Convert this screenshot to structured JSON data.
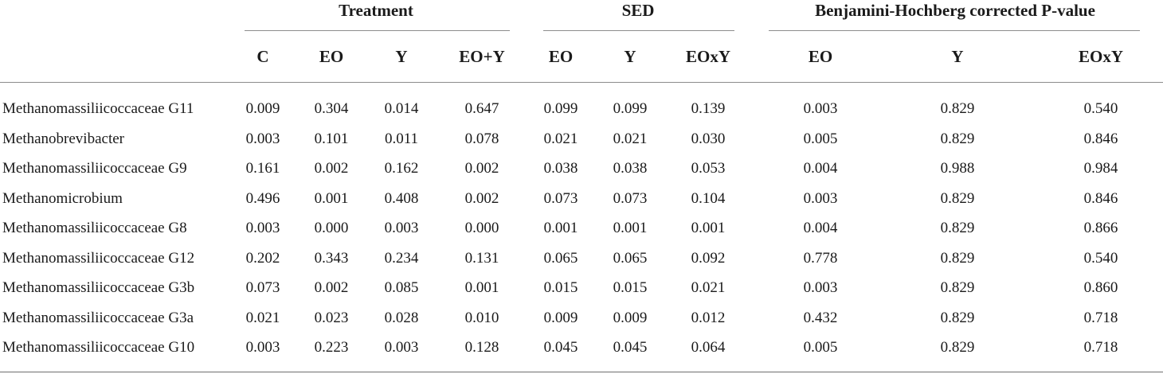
{
  "groups": {
    "treatment": "Treatment",
    "sed": "SED",
    "bh": "Benjamini-Hochberg corrected P-value"
  },
  "columns": [
    "C",
    "EO",
    "Y",
    "EO+Y",
    "EO",
    "Y",
    "EOxY",
    "EO",
    "Y",
    "EOxY"
  ],
  "rows": [
    {
      "label": "Methanomassiliicoccaceae G11",
      "values": [
        "0.009",
        "0.304",
        "0.014",
        "0.647",
        "0.099",
        "0.099",
        "0.139",
        "0.003",
        "0.829",
        "0.540"
      ]
    },
    {
      "label": "Methanobrevibacter",
      "values": [
        "0.003",
        "0.101",
        "0.011",
        "0.078",
        "0.021",
        "0.021",
        "0.030",
        "0.005",
        "0.829",
        "0.846"
      ]
    },
    {
      "label": "Methanomassiliicoccaceae G9",
      "values": [
        "0.161",
        "0.002",
        "0.162",
        "0.002",
        "0.038",
        "0.038",
        "0.053",
        "0.004",
        "0.988",
        "0.984"
      ]
    },
    {
      "label": "Methanomicrobium",
      "values": [
        "0.496",
        "0.001",
        "0.408",
        "0.002",
        "0.073",
        "0.073",
        "0.104",
        "0.003",
        "0.829",
        "0.846"
      ]
    },
    {
      "label": "Methanomassiliicoccaceae G8",
      "values": [
        "0.003",
        "0.000",
        "0.003",
        "0.000",
        "0.001",
        "0.001",
        "0.001",
        "0.004",
        "0.829",
        "0.866"
      ]
    },
    {
      "label": "Methanomassiliicoccaceae G12",
      "values": [
        "0.202",
        "0.343",
        "0.234",
        "0.131",
        "0.065",
        "0.065",
        "0.092",
        "0.778",
        "0.829",
        "0.540"
      ]
    },
    {
      "label": "Methanomassiliicoccaceae G3b",
      "values": [
        "0.073",
        "0.002",
        "0.085",
        "0.001",
        "0.015",
        "0.015",
        "0.021",
        "0.003",
        "0.829",
        "0.860"
      ]
    },
    {
      "label": "Methanomassiliicoccaceae G3a",
      "values": [
        "0.021",
        "0.023",
        "0.028",
        "0.010",
        "0.009",
        "0.009",
        "0.012",
        "0.432",
        "0.829",
        "0.718"
      ]
    },
    {
      "label": "Methanomassiliicoccaceae G10",
      "values": [
        "0.003",
        "0.223",
        "0.003",
        "0.128",
        "0.045",
        "0.045",
        "0.064",
        "0.005",
        "0.829",
        "0.718"
      ]
    }
  ]
}
